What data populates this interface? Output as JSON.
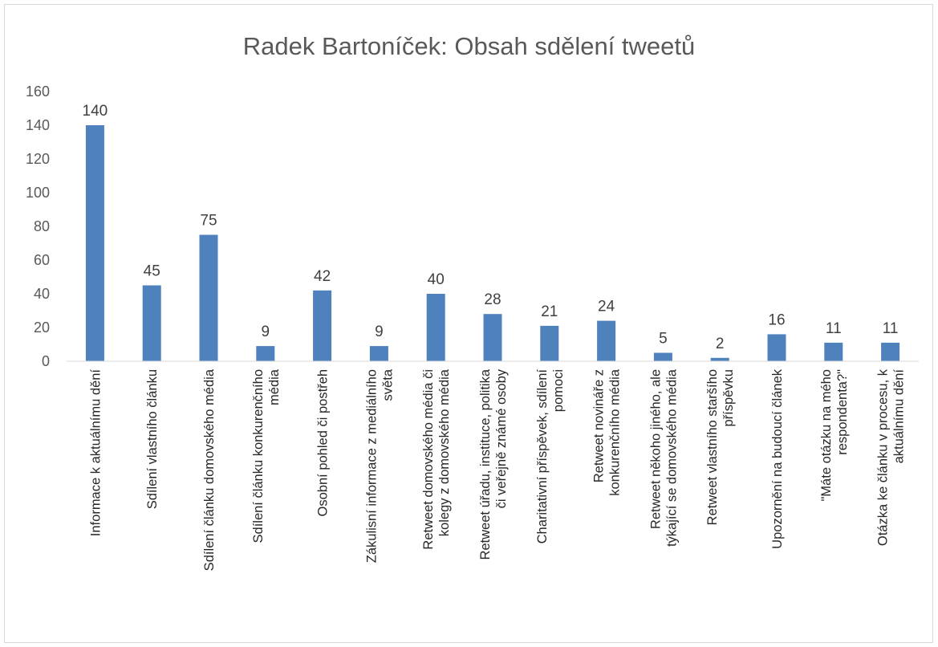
{
  "chart_data": {
    "type": "bar",
    "title": "Radek Bartoníček: Obsah sdělení tweetů",
    "categories": [
      [
        "Informace k aktuálnímu dění"
      ],
      [
        "Sdílení vlastního článku"
      ],
      [
        "Sdílení článku domovského média"
      ],
      [
        "Sdílení článku konkurenčního",
        "média"
      ],
      [
        "Osobní pohled či postřeh"
      ],
      [
        "Zákulisní informace z mediálního",
        "světa"
      ],
      [
        "Retweet domovského média či",
        "kolegy z domovského média"
      ],
      [
        "Retweet úřadu, instituce, politika",
        "či veřejně známé osoby"
      ],
      [
        "Charitativní příspěvek, sdílení",
        "pomoci"
      ],
      [
        "Retweet novináře z",
        "konkurenčního média"
      ],
      [
        "Retweet někoho jiného, ale",
        "týkající se domovského média"
      ],
      [
        "Retweet vlastního staršího",
        "příspěvku"
      ],
      [
        "Upozornění na budoucí článek"
      ],
      [
        "\"Máte otázku na mého",
        "respondenta?\""
      ],
      [
        "Otázka ke článku v procesu, k",
        "aktuálnímu dění"
      ]
    ],
    "values": [
      140,
      45,
      75,
      9,
      42,
      9,
      40,
      28,
      21,
      24,
      5,
      2,
      16,
      11,
      11
    ],
    "ylim": [
      0,
      160
    ],
    "yticks": [
      0,
      20,
      40,
      60,
      80,
      100,
      120,
      140,
      160
    ],
    "grid": false,
    "bar_color": "#4f81bd",
    "axis_color": "#d9d9d9"
  }
}
